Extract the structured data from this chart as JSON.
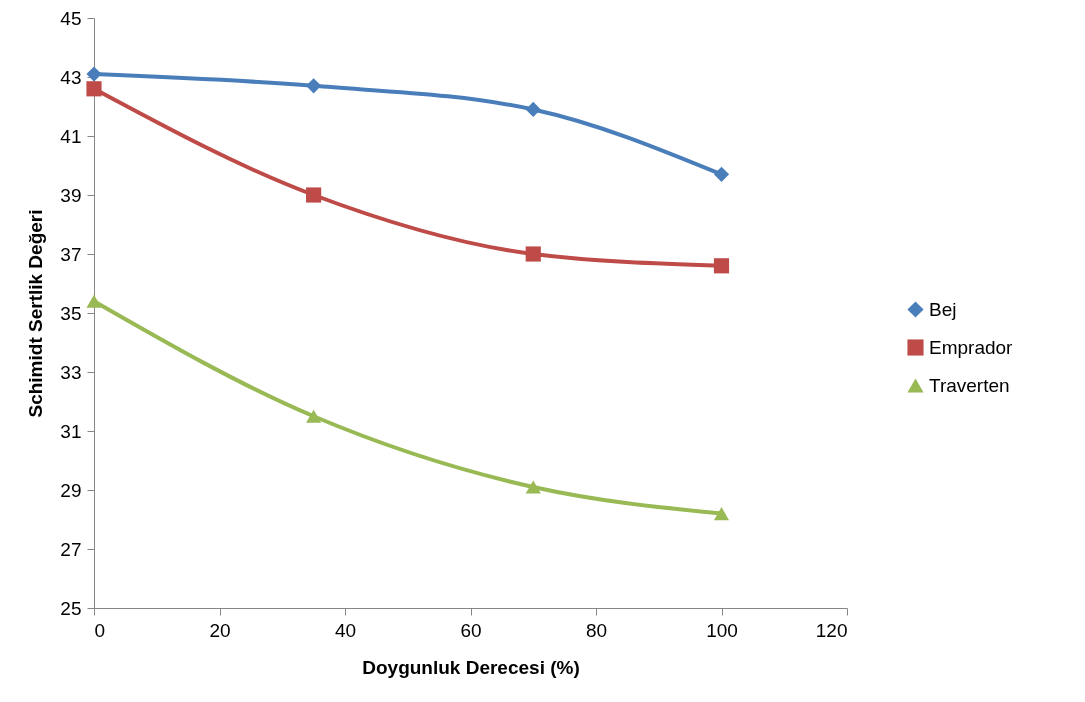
{
  "chart_data": {
    "type": "line",
    "xlabel": "Doygunluk Derecesi (%)",
    "ylabel": "Schimidt Sertlik Değeri",
    "x": [
      0,
      35,
      70,
      100
    ],
    "series": [
      {
        "name": "Bej",
        "color": "#4a7ebb",
        "marker": "diamond",
        "values": [
          43.1,
          42.7,
          41.9,
          39.7
        ]
      },
      {
        "name": "Emprador",
        "color": "#be4b48",
        "marker": "square",
        "values": [
          42.6,
          39.0,
          37.0,
          36.6
        ]
      },
      {
        "name": "Traverten",
        "color": "#98b954",
        "marker": "triangle",
        "values": [
          35.4,
          31.5,
          29.1,
          28.2
        ]
      }
    ],
    "xlim": [
      0,
      120
    ],
    "xticks": [
      0,
      20,
      40,
      60,
      80,
      100,
      120
    ],
    "ylim": [
      25,
      45
    ],
    "yticks": [
      25,
      27,
      29,
      31,
      33,
      35,
      37,
      39,
      41,
      43,
      45
    ],
    "grid": false,
    "legend": "right",
    "line_style": "solid"
  }
}
